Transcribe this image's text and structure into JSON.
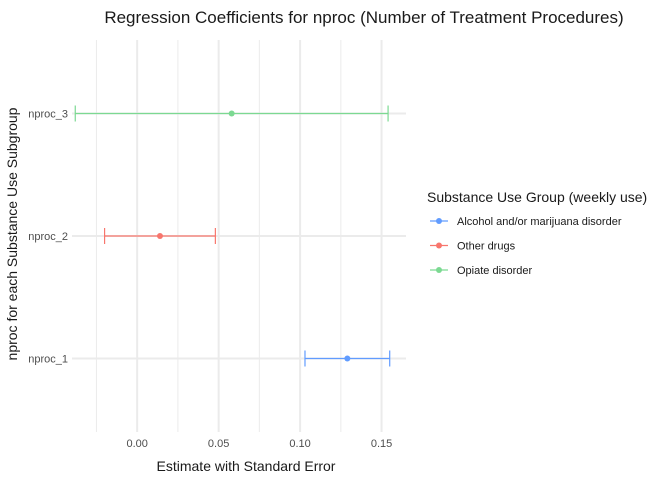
{
  "chart_data": {
    "type": "errorbar",
    "title": "Regression Coefficients for nproc (Number of Treatment Procedures)",
    "xlabel": "Estimate with Standard Error",
    "ylabel": "nproc for each Substance Use Subgroup",
    "xlim": [
      -0.04,
      0.165
    ],
    "x_ticks": [
      0.0,
      0.05,
      0.1,
      0.15
    ],
    "x_tick_labels": [
      "0.00",
      "0.05",
      "0.10",
      "0.15"
    ],
    "categories": [
      "nproc_1",
      "nproc_2",
      "nproc_3"
    ],
    "grid": true,
    "legend": {
      "title": "Substance Use Group (weekly use)",
      "position": "right"
    },
    "series": [
      {
        "name": "Alcohol and/or marijuana disorder",
        "color": "#619CFF",
        "category": "nproc_1",
        "estimate": 0.129,
        "lower": 0.103,
        "upper": 0.155
      },
      {
        "name": "Other drugs",
        "color": "#F8766D",
        "category": "nproc_2",
        "estimate": 0.014,
        "lower": -0.02,
        "upper": 0.048
      },
      {
        "name": "Opiate disorder",
        "color": "#7CD992",
        "category": "nproc_3",
        "estimate": 0.058,
        "lower": -0.038,
        "upper": 0.154
      }
    ]
  }
}
